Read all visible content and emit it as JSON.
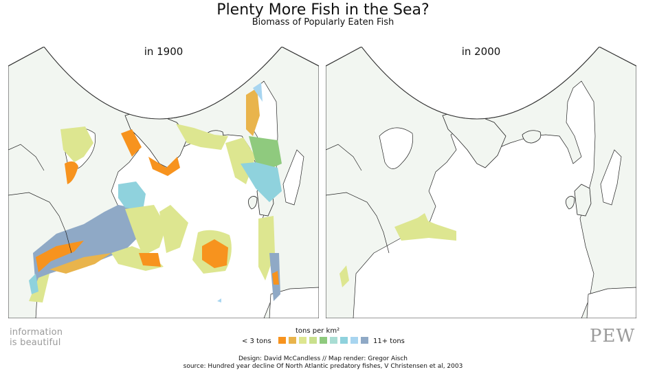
{
  "title": "Plenty More Fish in the Sea?",
  "subtitle": "Biomass of Popularly Eaten Fish",
  "maps": [
    {
      "label": "in 1900"
    },
    {
      "label": "in 2000"
    }
  ],
  "legend": {
    "title": "tons per km²",
    "low_label": "< 3 tons",
    "high_label": "11+ tons",
    "colors": [
      "#f7931e",
      "#e9b44c",
      "#dde690",
      "#c9e08d",
      "#8fca7e",
      "#a9ddd3",
      "#8fd2dd",
      "#a8d5f0",
      "#8fa9c6"
    ]
  },
  "colors": {
    "land": "#f2f6f1",
    "ocean": "#ffffff",
    "coastline": "#222222"
  },
  "branding": {
    "line1": "information",
    "line2": "is beautiful",
    "pew": "PEW"
  },
  "credits": {
    "design": "Design: David McCandless // Map render: Gregor Aisch",
    "source": "source: Hundred year decline Of North Atlantic predatory fishes, V Christensen et al, 2003"
  }
}
